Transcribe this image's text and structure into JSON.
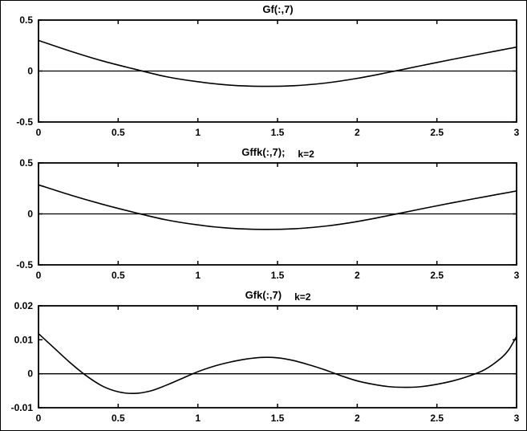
{
  "figure": {
    "background": "#ffffff",
    "foreground": "#000000"
  },
  "chart_data": [
    {
      "type": "line",
      "title": "Gf(:,7)",
      "k_label": "",
      "xlim": [
        0,
        3
      ],
      "ylim": [
        -0.5,
        0.5
      ],
      "xticks": [
        0,
        0.5,
        1,
        1.5,
        2,
        2.5,
        3
      ],
      "xtick_labels": [
        "0",
        "0.5",
        "1",
        "1.5",
        "2",
        "2.5",
        "3"
      ],
      "yticks": [
        -0.5,
        0,
        0.5
      ],
      "ytick_labels": [
        "-0.5",
        "0",
        "0.5"
      ],
      "zero_line": true,
      "grid": false,
      "legend": "none",
      "x": [
        0,
        0.2,
        0.4,
        0.6,
        0.8,
        1.0,
        1.2,
        1.4,
        1.6,
        1.8,
        2.0,
        2.2,
        2.4,
        2.6,
        2.8,
        3.0
      ],
      "y": [
        0.3,
        0.195,
        0.1,
        0.02,
        -0.055,
        -0.105,
        -0.138,
        -0.15,
        -0.144,
        -0.118,
        -0.072,
        -0.012,
        0.052,
        0.115,
        0.175,
        0.235
      ]
    },
    {
      "type": "line",
      "title": "Gffk(:,7);",
      "k_label": "k=2",
      "xlim": [
        0,
        3
      ],
      "ylim": [
        -0.5,
        0.5
      ],
      "xticks": [
        0,
        0.5,
        1,
        1.5,
        2,
        2.5,
        3
      ],
      "xtick_labels": [
        "0",
        "0.5",
        "1",
        "1.5",
        "2",
        "2.5",
        "3"
      ],
      "yticks": [
        -0.5,
        0,
        0.5
      ],
      "ytick_labels": [
        "-0.5",
        "0",
        "0.5"
      ],
      "zero_line": true,
      "grid": false,
      "legend": "none",
      "x": [
        0,
        0.2,
        0.4,
        0.6,
        0.8,
        1.0,
        1.2,
        1.4,
        1.6,
        1.8,
        2.0,
        2.2,
        2.4,
        2.6,
        2.8,
        3.0
      ],
      "y": [
        0.285,
        0.185,
        0.095,
        0.015,
        -0.058,
        -0.108,
        -0.14,
        -0.152,
        -0.146,
        -0.12,
        -0.075,
        -0.015,
        0.048,
        0.11,
        0.168,
        0.225
      ]
    },
    {
      "type": "line",
      "title": "Gfk(:,7)",
      "k_label": "k=2",
      "xlim": [
        0,
        3
      ],
      "ylim": [
        -0.01,
        0.02
      ],
      "xticks": [
        0,
        0.5,
        1,
        1.5,
        2,
        2.5,
        3
      ],
      "xtick_labels": [
        "0",
        "0.5",
        "1",
        "1.5",
        "2",
        "2.5",
        "3"
      ],
      "yticks": [
        -0.01,
        0,
        0.01,
        0.02
      ],
      "ytick_labels": [
        "-0.01",
        "0",
        "0.01",
        "0.02"
      ],
      "zero_line": true,
      "grid": false,
      "legend": "none",
      "x": [
        0,
        0.1,
        0.2,
        0.3,
        0.4,
        0.5,
        0.6,
        0.7,
        0.8,
        0.9,
        1.0,
        1.1,
        1.2,
        1.3,
        1.4,
        1.5,
        1.6,
        1.7,
        1.8,
        1.9,
        2.0,
        2.1,
        2.2,
        2.3,
        2.4,
        2.5,
        2.6,
        2.7,
        2.8,
        2.9,
        2.95,
        3.0
      ],
      "y": [
        0.0118,
        0.0075,
        0.0032,
        -0.0006,
        -0.0036,
        -0.0053,
        -0.0058,
        -0.0051,
        -0.0034,
        -0.0014,
        0.0006,
        0.0022,
        0.0034,
        0.0043,
        0.0048,
        0.0047,
        0.0039,
        0.0026,
        0.0011,
        -0.0006,
        -0.0021,
        -0.0031,
        -0.0038,
        -0.004,
        -0.0038,
        -0.0031,
        -0.0021,
        -0.0007,
        0.0012,
        0.0045,
        0.007,
        0.011
      ]
    }
  ]
}
